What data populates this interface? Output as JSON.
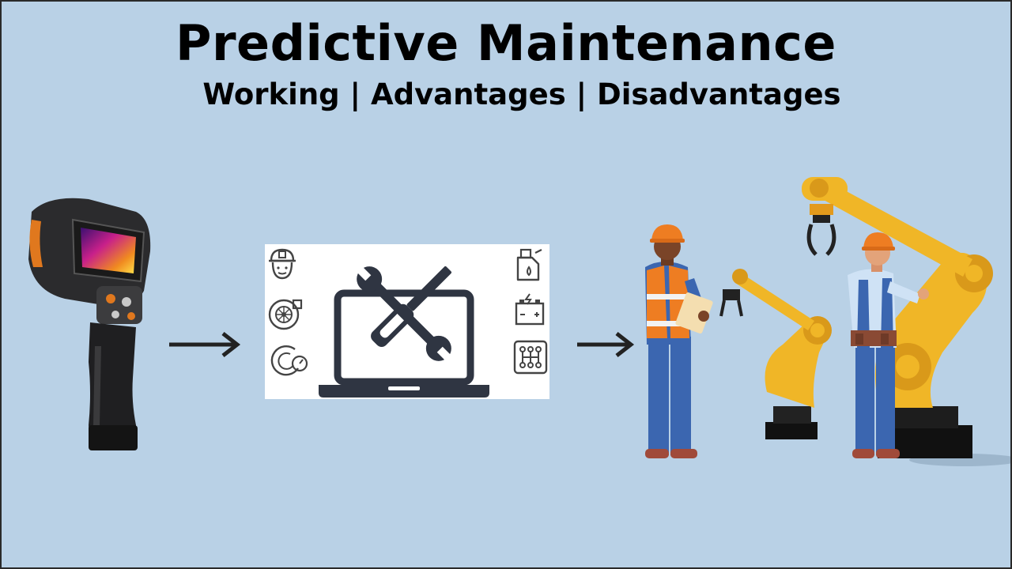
{
  "header": {
    "title": "Predictive Maintenance",
    "subtitle": "Working | Advantages | Disadvantages"
  },
  "flow": {
    "steps": [
      {
        "id": "thermal-camera",
        "icon": "thermal-imaging-camera-icon"
      },
      {
        "id": "diagnostics",
        "icon": "laptop-tools-icon"
      },
      {
        "id": "maintenance",
        "icon": "workers-robotic-arms-icon"
      }
    ],
    "arrow_icon": "right-arrow-icon",
    "side_icons_left": [
      "worker-face-icon",
      "turbine-icon",
      "gauge-icon"
    ],
    "side_icons_right": [
      "oil-can-icon",
      "battery-icon",
      "gear-shift-icon"
    ]
  },
  "colors": {
    "background": "#b9d1e6",
    "robot_yellow": "#f0b627",
    "hardhat_orange": "#ee7d22",
    "overall_blue": "#3b66b0"
  }
}
